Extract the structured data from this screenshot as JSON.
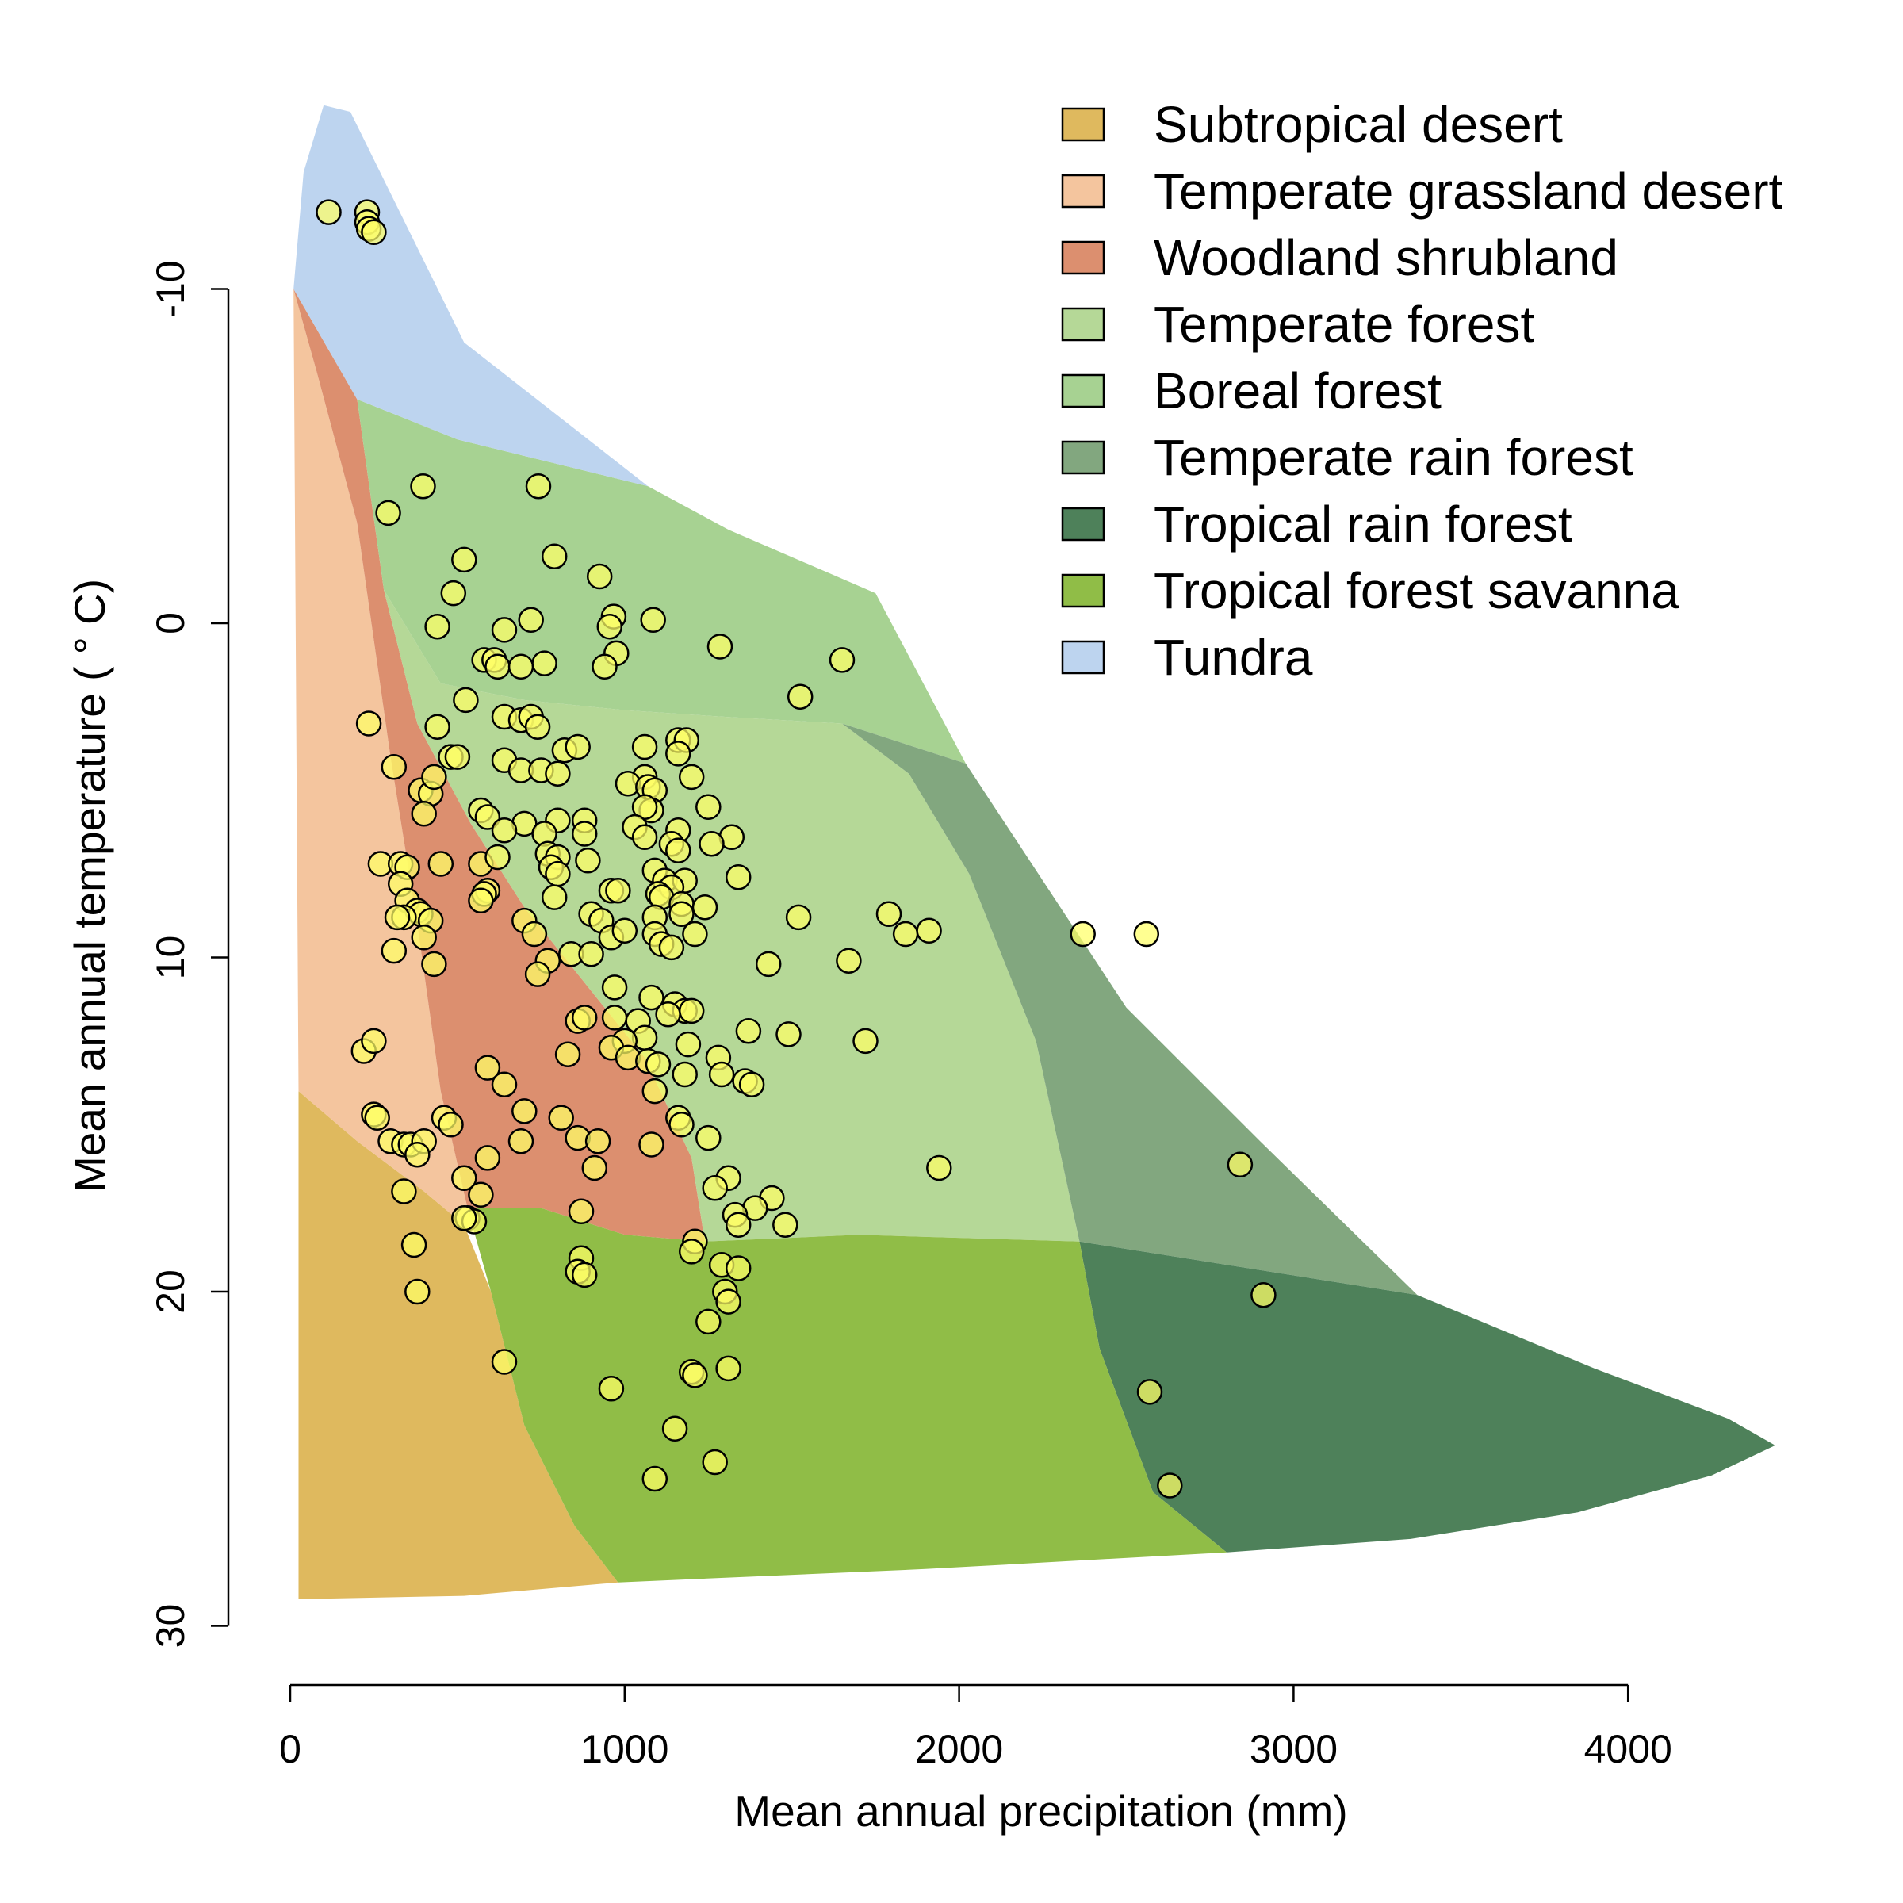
{
  "chart_data": {
    "type": "scatter",
    "title": "",
    "xlabel": "Mean annual precipitation (mm)",
    "ylabel": "Mean annual temperature ( ° C)",
    "xlim": [
      0,
      4500
    ],
    "ylim": [
      -16,
      32
    ],
    "y_reversed": true,
    "x_ticks": [
      0,
      1000,
      2000,
      3000,
      4000
    ],
    "y_ticks": [
      -10,
      0,
      10,
      20,
      30
    ],
    "grid": false,
    "legend_position": "top-right",
    "point_color": "#ffff66",
    "biomes": [
      {
        "name": "Subtropical desert",
        "color": "#dfb95e",
        "polygon": [
          [
            25,
            14
          ],
          [
            200,
            15.5
          ],
          [
            400,
            17
          ],
          [
            520,
            18
          ],
          [
            600,
            20
          ],
          [
            700,
            24
          ],
          [
            850,
            27
          ],
          [
            980,
            28.7
          ],
          [
            520,
            29.1
          ],
          [
            25,
            29.2
          ]
        ]
      },
      {
        "name": "Temperate grassland desert",
        "color": "#f4c59e",
        "polygon": [
          [
            10,
            -10
          ],
          [
            80,
            -7.5
          ],
          [
            200,
            -3
          ],
          [
            300,
            4
          ],
          [
            380,
            9
          ],
          [
            450,
            14
          ],
          [
            530,
            17.5
          ],
          [
            520,
            18
          ],
          [
            400,
            17
          ],
          [
            200,
            15.5
          ],
          [
            25,
            14
          ]
        ]
      },
      {
        "name": "Woodland shrubland",
        "color": "#dc8f6f",
        "polygon": [
          [
            10,
            -10
          ],
          [
            200,
            -6.7
          ],
          [
            280,
            -1
          ],
          [
            380,
            3
          ],
          [
            540,
            6
          ],
          [
            700,
            8.5
          ],
          [
            900,
            11
          ],
          [
            1060,
            13
          ],
          [
            1200,
            16
          ],
          [
            1240,
            18.5
          ],
          [
            1000,
            18.3
          ],
          [
            750,
            17.5
          ],
          [
            530,
            17.5
          ],
          [
            450,
            14
          ],
          [
            380,
            9
          ],
          [
            300,
            4
          ],
          [
            200,
            -3
          ],
          [
            80,
            -7.5
          ]
        ]
      },
      {
        "name": "Temperate forest",
        "color": "#b5d897",
        "polygon": [
          [
            280,
            -1
          ],
          [
            450,
            1.8
          ],
          [
            700,
            2.3
          ],
          [
            1000,
            2.6
          ],
          [
            1300,
            2.8
          ],
          [
            1650,
            3
          ],
          [
            1850,
            4.5
          ],
          [
            2030,
            7.5
          ],
          [
            2230,
            12.5
          ],
          [
            2360,
            18.5
          ],
          [
            1700,
            18.3
          ],
          [
            1240,
            18.5
          ],
          [
            1200,
            16
          ],
          [
            1060,
            13
          ],
          [
            900,
            11
          ],
          [
            700,
            8.5
          ],
          [
            540,
            6
          ],
          [
            380,
            3
          ]
        ]
      },
      {
        "name": "Boreal forest",
        "color": "#a7d292",
        "polygon": [
          [
            200,
            -6.7
          ],
          [
            500,
            -5.5
          ],
          [
            1070,
            -4.1
          ],
          [
            1310,
            -2.8
          ],
          [
            1750,
            -0.9
          ],
          [
            2020,
            4.2
          ],
          [
            1650,
            3
          ],
          [
            1300,
            2.8
          ],
          [
            1000,
            2.6
          ],
          [
            700,
            2.3
          ],
          [
            450,
            1.8
          ],
          [
            280,
            -1
          ]
        ]
      },
      {
        "name": "Temperate rain forest",
        "color": "#82a77f",
        "polygon": [
          [
            1650,
            3
          ],
          [
            2020,
            4.2
          ],
          [
            2500,
            11.5
          ],
          [
            2900,
            15.5
          ],
          [
            3370,
            20.1
          ],
          [
            2360,
            18.5
          ],
          [
            2230,
            12.5
          ],
          [
            2030,
            7.5
          ],
          [
            1850,
            4.5
          ]
        ]
      },
      {
        "name": "Tropical rain forest",
        "color": "#4e815a",
        "polygon": [
          [
            2360,
            18.5
          ],
          [
            3370,
            20.1
          ],
          [
            3900,
            22.3
          ],
          [
            4300,
            23.8
          ],
          [
            4440,
            24.6
          ],
          [
            4250,
            25.5
          ],
          [
            3850,
            26.6
          ],
          [
            3350,
            27.4
          ],
          [
            2800,
            27.8
          ],
          [
            2580,
            26
          ],
          [
            2420,
            21.7
          ]
        ]
      },
      {
        "name": "Tropical forest savanna",
        "color": "#90bd47",
        "polygon": [
          [
            530,
            17.5
          ],
          [
            750,
            17.5
          ],
          [
            1000,
            18.3
          ],
          [
            1240,
            18.5
          ],
          [
            1700,
            18.3
          ],
          [
            2360,
            18.5
          ],
          [
            2420,
            21.7
          ],
          [
            2580,
            26
          ],
          [
            2800,
            27.8
          ],
          [
            1900,
            28.3
          ],
          [
            980,
            28.7
          ],
          [
            850,
            27
          ],
          [
            700,
            24
          ],
          [
            600,
            20
          ]
        ]
      },
      {
        "name": "Tundra",
        "color": "#bdd4ef",
        "polygon": [
          [
            10,
            -10
          ],
          [
            40,
            -13.5
          ],
          [
            100,
            -15.5
          ],
          [
            180,
            -15.3
          ],
          [
            520,
            -8.4
          ],
          [
            1070,
            -4.1
          ],
          [
            500,
            -5.5
          ],
          [
            200,
            -6.7
          ]
        ]
      }
    ],
    "points": [
      [
        115,
        -12.3
      ],
      [
        230,
        -12.3
      ],
      [
        230,
        -12
      ],
      [
        235,
        -11.8
      ],
      [
        250,
        -11.7
      ],
      [
        397,
        -4.1
      ],
      [
        742,
        -4.1
      ],
      [
        293,
        -3.3
      ],
      [
        520,
        -1.9
      ],
      [
        790,
        -2
      ],
      [
        925,
        -1.4
      ],
      [
        488,
        -0.9
      ],
      [
        1085,
        -0.1
      ],
      [
        967,
        -0.2
      ],
      [
        440,
        0.1
      ],
      [
        640,
        0.2
      ],
      [
        720,
        -0.1
      ],
      [
        955,
        0.1
      ],
      [
        1285,
        0.7
      ],
      [
        975,
        0.9
      ],
      [
        580,
        1.1
      ],
      [
        610,
        1.1
      ],
      [
        620,
        1.3
      ],
      [
        690,
        1.3
      ],
      [
        760,
        1.2
      ],
      [
        940,
        1.3
      ],
      [
        1650,
        1.1
      ],
      [
        525,
        2.3
      ],
      [
        1525,
        2.2
      ],
      [
        235,
        3
      ],
      [
        640,
        2.8
      ],
      [
        690,
        2.9
      ],
      [
        720,
        2.8
      ],
      [
        440,
        3.1
      ],
      [
        740,
        3.1
      ],
      [
        1160,
        3.5
      ],
      [
        1185,
        3.5
      ],
      [
        1060,
        3.7
      ],
      [
        1160,
        3.9
      ],
      [
        820,
        3.8
      ],
      [
        860,
        3.7
      ],
      [
        480,
        4
      ],
      [
        500,
        4
      ],
      [
        310,
        4.3
      ],
      [
        640,
        4.1
      ],
      [
        690,
        4.4
      ],
      [
        750,
        4.4
      ],
      [
        800,
        4.5
      ],
      [
        1060,
        4.6
      ],
      [
        1200,
        4.6
      ],
      [
        390,
        5
      ],
      [
        420,
        5.1
      ],
      [
        430,
        4.6
      ],
      [
        400,
        5.7
      ],
      [
        1010,
        4.8
      ],
      [
        1070,
        4.9
      ],
      [
        1090,
        5
      ],
      [
        1080,
        5.6
      ],
      [
        1060,
        5.5
      ],
      [
        570,
        5.6
      ],
      [
        590,
        5.8
      ],
      [
        700,
        6
      ],
      [
        800,
        5.9
      ],
      [
        880,
        5.9
      ],
      [
        1250,
        5.5
      ],
      [
        640,
        6.2
      ],
      [
        760,
        6.3
      ],
      [
        1160,
        6.2
      ],
      [
        1140,
        6.6
      ],
      [
        1030,
        6.1
      ],
      [
        1060,
        6.4
      ],
      [
        880,
        6.3
      ],
      [
        1320,
        6.4
      ],
      [
        1260,
        6.6
      ],
      [
        1160,
        6.8
      ],
      [
        770,
        6.9
      ],
      [
        800,
        7
      ],
      [
        890,
        7.1
      ],
      [
        270,
        7.2
      ],
      [
        330,
        7.2
      ],
      [
        350,
        7.3
      ],
      [
        450,
        7.2
      ],
      [
        570,
        7.2
      ],
      [
        620,
        7
      ],
      [
        780,
        7.3
      ],
      [
        800,
        7.5
      ],
      [
        1090,
        7.4
      ],
      [
        1120,
        7.7
      ],
      [
        1180,
        7.7
      ],
      [
        1140,
        7.9
      ],
      [
        1340,
        7.6
      ],
      [
        330,
        7.8
      ],
      [
        590,
        8
      ],
      [
        580,
        8.1
      ],
      [
        570,
        8.3
      ],
      [
        790,
        8.2
      ],
      [
        960,
        8
      ],
      [
        980,
        8
      ],
      [
        1100,
        8.1
      ],
      [
        1110,
        8.2
      ],
      [
        1170,
        8.4
      ],
      [
        1240,
        8.5
      ],
      [
        350,
        8.3
      ],
      [
        380,
        8.6
      ],
      [
        390,
        8.7
      ],
      [
        340,
        8.8
      ],
      [
        320,
        8.8
      ],
      [
        420,
        8.9
      ],
      [
        700,
        8.9
      ],
      [
        900,
        8.7
      ],
      [
        930,
        8.9
      ],
      [
        1090,
        8.8
      ],
      [
        1170,
        8.7
      ],
      [
        1520,
        8.8
      ],
      [
        1790,
        8.7
      ],
      [
        1840,
        9.3
      ],
      [
        1910,
        9.2
      ],
      [
        400,
        9.4
      ],
      [
        730,
        9.3
      ],
      [
        1090,
        9.3
      ],
      [
        1110,
        9.6
      ],
      [
        1140,
        9.7
      ],
      [
        1210,
        9.3
      ],
      [
        310,
        9.8
      ],
      [
        430,
        10.2
      ],
      [
        770,
        10.1
      ],
      [
        840,
        9.9
      ],
      [
        900,
        9.9
      ],
      [
        960,
        9.4
      ],
      [
        1000,
        9.2
      ],
      [
        1670,
        10.1
      ],
      [
        1430,
        10.2
      ],
      [
        740,
        10.5
      ],
      [
        970,
        10.9
      ],
      [
        1080,
        11.2
      ],
      [
        1150,
        11.4
      ],
      [
        1180,
        11.6
      ],
      [
        1200,
        11.6
      ],
      [
        1130,
        11.7
      ],
      [
        860,
        11.9
      ],
      [
        880,
        11.8
      ],
      [
        970,
        11.8
      ],
      [
        1040,
        11.9
      ],
      [
        1370,
        12.2
      ],
      [
        1490,
        12.3
      ],
      [
        1060,
        12.4
      ],
      [
        1000,
        12.5
      ],
      [
        960,
        12.7
      ],
      [
        1190,
        12.6
      ],
      [
        1720,
        12.5
      ],
      [
        220,
        12.8
      ],
      [
        250,
        12.5
      ],
      [
        830,
        12.9
      ],
      [
        1010,
        13
      ],
      [
        1070,
        13.1
      ],
      [
        1100,
        13.2
      ],
      [
        1180,
        13.5
      ],
      [
        1280,
        13
      ],
      [
        590,
        13.3
      ],
      [
        1290,
        13.5
      ],
      [
        1360,
        13.7
      ],
      [
        1380,
        13.8
      ],
      [
        640,
        13.8
      ],
      [
        1090,
        14
      ],
      [
        250,
        14.7
      ],
      [
        260,
        14.8
      ],
      [
        460,
        14.8
      ],
      [
        480,
        15
      ],
      [
        700,
        14.6
      ],
      [
        810,
        14.8
      ],
      [
        1160,
        14.8
      ],
      [
        1170,
        15
      ],
      [
        860,
        15.4
      ],
      [
        300,
        15.5
      ],
      [
        340,
        15.6
      ],
      [
        360,
        15.6
      ],
      [
        400,
        15.5
      ],
      [
        690,
        15.5
      ],
      [
        1080,
        15.6
      ],
      [
        1250,
        15.4
      ],
      [
        920,
        15.5
      ],
      [
        380,
        15.9
      ],
      [
        590,
        16
      ],
      [
        1940,
        16.3
      ],
      [
        910,
        16.3
      ],
      [
        520,
        16.6
      ],
      [
        1310,
        16.6
      ],
      [
        340,
        17
      ],
      [
        570,
        17.1
      ],
      [
        1440,
        17.2
      ],
      [
        1270,
        16.9
      ],
      [
        2840,
        16.2
      ],
      [
        1390,
        17.5
      ],
      [
        1330,
        17.7
      ],
      [
        1340,
        18
      ],
      [
        1480,
        18
      ],
      [
        530,
        17.8
      ],
      [
        550,
        17.9
      ],
      [
        520,
        17.8
      ],
      [
        870,
        17.6
      ],
      [
        1210,
        18.5
      ],
      [
        370,
        18.6
      ],
      [
        1200,
        18.8
      ],
      [
        870,
        19
      ],
      [
        860,
        19.4
      ],
      [
        880,
        19.5
      ],
      [
        1290,
        19.2
      ],
      [
        1340,
        19.3
      ],
      [
        1300,
        20
      ],
      [
        1310,
        20.3
      ],
      [
        380,
        20
      ],
      [
        2910,
        20.1
      ],
      [
        1250,
        20.9
      ],
      [
        640,
        22.1
      ],
      [
        1310,
        22.3
      ],
      [
        1200,
        22.4
      ],
      [
        1210,
        22.5
      ],
      [
        960,
        22.9
      ],
      [
        2570,
        23
      ],
      [
        1150,
        24.1
      ],
      [
        1270,
        25.1
      ],
      [
        1090,
        25.6
      ],
      [
        2630,
        25.8
      ],
      [
        2370,
        9.3
      ],
      [
        2560,
        9.3
      ]
    ]
  }
}
